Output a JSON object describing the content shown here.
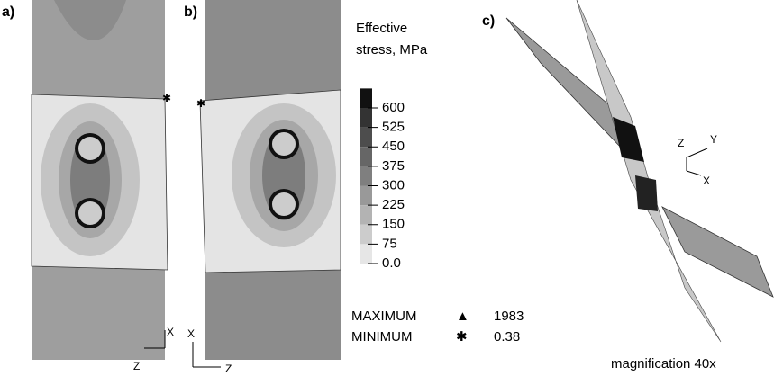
{
  "panels": [
    {
      "label": "a)"
    },
    {
      "label": "b)"
    },
    {
      "label": "c)"
    }
  ],
  "legend": {
    "title_lines": [
      "Effective",
      "stress, MPa"
    ],
    "ticks": [
      600,
      525,
      450,
      375,
      300,
      225,
      150,
      75,
      {
        "value": 0,
        "label": "0.0"
      }
    ]
  },
  "extremes": [
    {
      "name": "MAXIMUM",
      "value": 1983
    },
    {
      "name": "MINIMUM",
      "value": 0.38
    }
  ],
  "triads": [
    {
      "x": "X",
      "z": "Z"
    },
    {
      "x": "X",
      "z": "Z"
    },
    {
      "x": "X",
      "y": "Y",
      "z": "Z"
    }
  ],
  "caption": "magnification 40x"
}
